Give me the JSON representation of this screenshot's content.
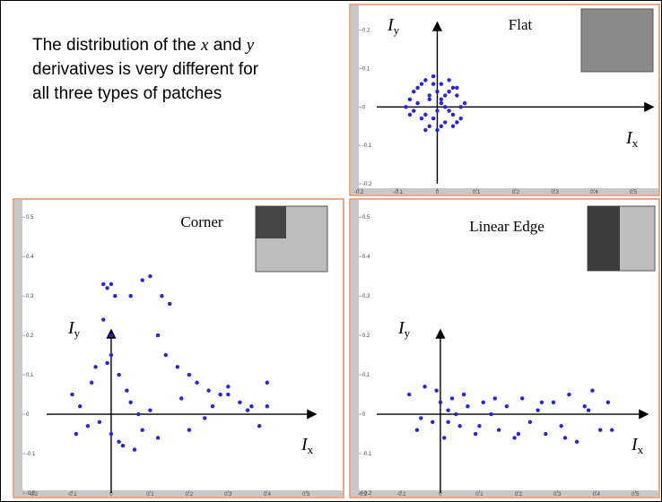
{
  "heading": {
    "line1": [
      "The distribution of the ",
      "x",
      " and ",
      "y"
    ],
    "line2": "derivatives is very different for",
    "line3": "all three types of patches"
  },
  "chart_data": [
    {
      "type": "scatter",
      "title": "Flat",
      "x_label": {
        "text": "I",
        "sub": "x"
      },
      "y_label": {
        "text": "I",
        "sub": "y"
      },
      "color": "#2424e6",
      "xlim": [
        -0.2,
        0.55
      ],
      "ylim": [
        -0.2,
        0.26
      ],
      "xticks": [
        -0.2,
        -0.1,
        0,
        0.1,
        0.2,
        0.3,
        0.4,
        0.5
      ],
      "yticks": [
        -0.2,
        -0.1,
        0,
        0.1,
        0.2
      ],
      "x": [
        -0.07,
        -0.05,
        -0.03,
        -0.01,
        0.01,
        0.03,
        0.05,
        0.06,
        -0.06,
        -0.04,
        -0.02,
        0,
        0.02,
        0.04,
        0.07,
        -0.08,
        -0.05,
        -0.02,
        0.01,
        0.03,
        0.05,
        -0.03,
        0,
        0.02,
        -0.01,
        0.04,
        -0.06,
        0.06,
        -0.04,
        0.01,
        0.03,
        -0.02,
        0,
        0.05,
        -0.07,
        0.02,
        -0.01,
        0.04,
        -0.03,
        0.01
      ],
      "y": [
        0.02,
        0.05,
        0.07,
        0.08,
        0.06,
        0.04,
        0.03,
        0,
        -0.01,
        -0.03,
        -0.05,
        -0.06,
        -0.04,
        -0.02,
        0.01,
        0,
        0.01,
        0.03,
        0.02,
        -0.01,
        -0.04,
        -0.02,
        0.04,
        0,
        -0.03,
        0.05,
        0.04,
        -0.03,
        0.06,
        -0.05,
        0.07,
        0.02,
        -0.01,
        0.05,
        -0.02,
        0.03,
        0.06,
        -0.05,
        -0.06,
        0.01
      ]
    },
    {
      "type": "scatter",
      "title": "Corner",
      "x_label": {
        "text": "I",
        "sub": "x"
      },
      "y_label": {
        "text": "I",
        "sub": "y"
      },
      "color": "#2424e6",
      "xlim": [
        -0.2,
        0.55
      ],
      "ylim": [
        -0.2,
        0.53
      ],
      "xticks": [
        -0.2,
        -0.1,
        0,
        0.1,
        0.2,
        0.3,
        0.4,
        0.5
      ],
      "yticks": [
        -0.2,
        -0.1,
        0,
        0.1,
        0.2,
        0.3,
        0.4,
        0.5
      ],
      "x": [
        -0.02,
        -0.01,
        0,
        0.01,
        -0.02,
        0,
        -0.01,
        0.02,
        0.05,
        0.08,
        0.1,
        0.13,
        0.15,
        0.12,
        0.14,
        0.17,
        0.2,
        0.22,
        0.25,
        0.28,
        0.3,
        0.33,
        0.36,
        0.4,
        0.4,
        -0.1,
        -0.08,
        -0.05,
        -0.03,
        0,
        0.03,
        0.05,
        0.08,
        0.1,
        0.12,
        0.18,
        0.24,
        0.3,
        0.35,
        -0.06,
        -0.04,
        0.02,
        0.04,
        0.06,
        -0.09,
        0.0,
        0.07,
        0.2,
        0.26,
        0.38
      ],
      "y": [
        0.33,
        0.32,
        0.33,
        0.3,
        0.24,
        0.2,
        0.13,
        0.1,
        0.3,
        0.34,
        0.35,
        0.3,
        0.28,
        0.2,
        0.15,
        0.12,
        0.1,
        0.08,
        0.06,
        0.05,
        0.07,
        0.03,
        0.02,
        0.08,
        0.02,
        0.05,
        0.02,
        0.08,
        -0.02,
        -0.05,
        -0.08,
        0.03,
        -0.04,
        0.01,
        -0.06,
        0.04,
        -0.01,
        0.05,
        0.01,
        -0.03,
        0.12,
        -0.07,
        0.06,
        -0.09,
        -0.05,
        0.15,
        0.0,
        -0.04,
        0.02,
        -0.03
      ]
    },
    {
      "type": "scatter",
      "title": "Linear Edge",
      "x_label": {
        "text": "I",
        "sub": "x"
      },
      "y_label": {
        "text": "I",
        "sub": "y"
      },
      "color": "#2424e6",
      "xlim": [
        -0.2,
        0.55
      ],
      "ylim": [
        -0.2,
        0.53
      ],
      "xticks": [
        -0.2,
        -0.1,
        0,
        0.1,
        0.2,
        0.3,
        0.4,
        0.5
      ],
      "yticks": [
        -0.2,
        -0.1,
        0,
        0.1,
        0.2,
        0.3,
        0.4,
        0.5
      ],
      "x": [
        -0.08,
        -0.06,
        -0.04,
        -0.02,
        0,
        0.01,
        0.02,
        0.03,
        0.05,
        0.07,
        0.09,
        0.11,
        0.13,
        0.15,
        0.17,
        0.19,
        0.21,
        0.23,
        0.25,
        0.27,
        0.29,
        0.31,
        0.33,
        0.35,
        0.37,
        0.39,
        0.41,
        0.43,
        -0.05,
        -0.01,
        0.02,
        0.04,
        0.06,
        0.1,
        0.14,
        0.2,
        0.26,
        0.32,
        0.38,
        0.44
      ],
      "y": [
        0.05,
        -0.04,
        0.07,
        -0.02,
        0.03,
        -0.06,
        0.01,
        0.04,
        -0.03,
        0.02,
        -0.05,
        0.03,
        0.0,
        -0.04,
        0.02,
        -0.06,
        0.04,
        -0.02,
        0.01,
        -0.05,
        0.03,
        -0.03,
        0.05,
        -0.07,
        0.02,
        0.06,
        -0.04,
        0.03,
        -0.01,
        0.06,
        -0.02,
        0.0,
        0.05,
        -0.03,
        0.04,
        -0.05,
        0.03,
        -0.06,
        0.01,
        -0.04
      ]
    }
  ]
}
